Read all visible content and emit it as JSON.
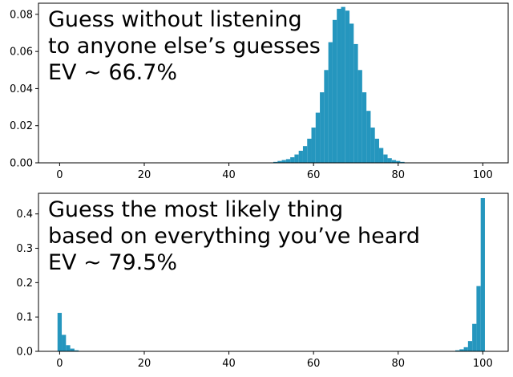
{
  "chart_data": [
    {
      "type": "bar",
      "title": "",
      "xlabel": "",
      "ylabel": "",
      "annotation_lines": [
        "Guess without listening",
        "to anyone else’s guesses",
        "EV ~ 66.7%"
      ],
      "xlim": [
        -5,
        106
      ],
      "ylim": [
        0,
        0.086
      ],
      "xticks": [
        0,
        20,
        40,
        60,
        80,
        100
      ],
      "yticks": [
        0.0,
        0.02,
        0.04,
        0.06,
        0.08
      ],
      "ytick_labels": [
        "0.00",
        "0.02",
        "0.04",
        "0.06",
        "0.08"
      ],
      "bar_color": "#2596be",
      "bins_x": [
        51,
        52,
        53,
        54,
        55,
        56,
        57,
        58,
        59,
        60,
        61,
        62,
        63,
        64,
        65,
        66,
        67,
        68,
        69,
        70,
        71,
        72,
        73,
        74,
        75,
        76,
        77,
        78,
        79,
        80,
        81,
        82
      ],
      "values": [
        0.0005,
        0.001,
        0.0015,
        0.002,
        0.003,
        0.0045,
        0.0065,
        0.009,
        0.013,
        0.019,
        0.027,
        0.038,
        0.05,
        0.065,
        0.077,
        0.083,
        0.084,
        0.082,
        0.075,
        0.064,
        0.05,
        0.038,
        0.028,
        0.019,
        0.013,
        0.008,
        0.0045,
        0.0025,
        0.0015,
        0.001,
        0.0005,
        0.0002
      ],
      "grid": false
    },
    {
      "type": "bar",
      "title": "",
      "xlabel": "",
      "ylabel": "",
      "annotation_lines": [
        "Guess the most likely thing",
        "based on everything you’ve heard",
        "EV ~ 79.5%"
      ],
      "xlim": [
        -5,
        106
      ],
      "ylim": [
        0,
        0.46
      ],
      "xticks": [
        0,
        20,
        40,
        60,
        80,
        100
      ],
      "yticks": [
        0.0,
        0.1,
        0.2,
        0.3,
        0.4
      ],
      "ytick_labels": [
        "0.0",
        "0.1",
        "0.2",
        "0.3",
        "0.4"
      ],
      "bar_color": "#2596be",
      "bins_x": [
        0,
        1,
        2,
        3,
        4,
        94,
        95,
        96,
        97,
        98,
        99,
        100
      ],
      "values": [
        0.112,
        0.048,
        0.018,
        0.008,
        0.003,
        0.003,
        0.006,
        0.012,
        0.03,
        0.08,
        0.19,
        0.446
      ],
      "grid": false
    }
  ]
}
